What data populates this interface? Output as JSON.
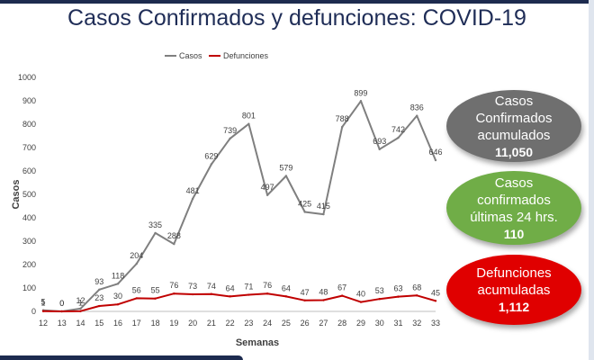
{
  "title": "Casos Confirmados y defunciones: COVID-19",
  "chart_data": {
    "type": "line",
    "x": [
      "12",
      "13",
      "14",
      "15",
      "16",
      "17",
      "18",
      "19",
      "20",
      "21",
      "22",
      "23",
      "24",
      "25",
      "26",
      "27",
      "28",
      "29",
      "30",
      "31",
      "32",
      "33"
    ],
    "series": [
      {
        "name": "Casos",
        "color": "#7f7f7f",
        "values": [
          5,
          0,
          12,
          93,
          118,
          204,
          335,
          288,
          481,
          629,
          739,
          801,
          497,
          579,
          425,
          415,
          788,
          899,
          693,
          742,
          836,
          646
        ],
        "labels": [
          "5",
          "0",
          "12",
          "93",
          "118",
          "204",
          "335",
          "288",
          "481",
          "629",
          "739",
          "801",
          "497",
          "579",
          "425",
          "415",
          "788",
          "899",
          "693",
          "742",
          "836",
          "646"
        ]
      },
      {
        "name": "Defunciones",
        "color": "#c00000",
        "values": [
          1,
          0,
          1,
          23,
          30,
          56,
          55,
          76,
          73,
          74,
          64,
          71,
          76,
          64,
          47,
          48,
          67,
          40,
          53,
          63,
          68,
          45
        ],
        "labels": [
          "1",
          "0",
          "1",
          "23",
          "30",
          "56",
          "55",
          "76",
          "73",
          "74",
          "64",
          "71",
          "76",
          "64",
          "47",
          "48",
          "67",
          "40",
          "53",
          "63",
          "68",
          "45"
        ]
      }
    ],
    "xlabel": "Semanas",
    "ylabel": "Casos",
    "ylim": [
      0,
      1000
    ],
    "yticks": [
      "0",
      "100",
      "200",
      "300",
      "400",
      "500",
      "600",
      "700",
      "800",
      "900",
      "1000"
    ],
    "grid": false,
    "legend": "top"
  },
  "bubbles": [
    {
      "label": "Casos Confirmados acumulados",
      "value": "11,050",
      "color": "#6f6f6f"
    },
    {
      "label": "Casos confirmados últimas 24 hrs.",
      "value": "110",
      "color": "#70ad47"
    },
    {
      "label": "Defunciones acumuladas",
      "value": "1,112",
      "color": "#e00000"
    }
  ]
}
